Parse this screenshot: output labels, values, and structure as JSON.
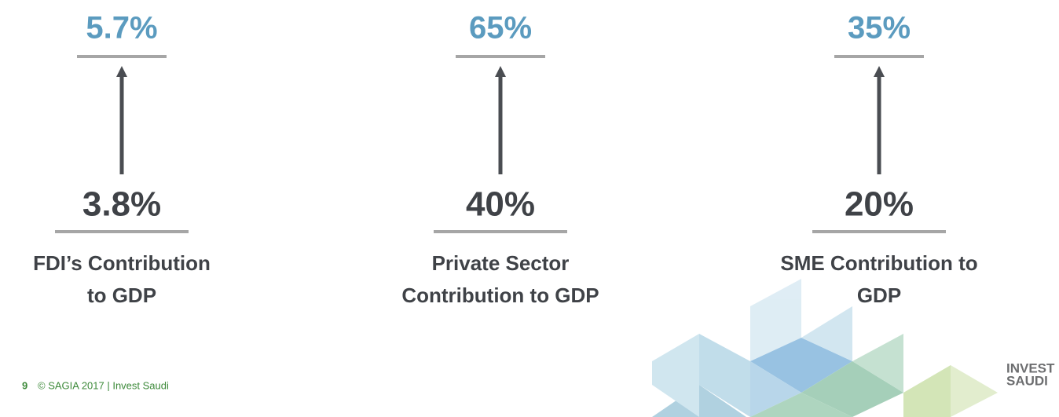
{
  "items": [
    {
      "target": "5.7%",
      "current": "3.8%",
      "label": [
        "FDI’s Contribution",
        "to GDP"
      ]
    },
    {
      "target": "65%",
      "current": "40%",
      "label": [
        "Private Sector",
        "Contribution to GDP"
      ]
    },
    {
      "target": "35%",
      "current": "20%",
      "label": [
        "SME Contribution to",
        "GDP"
      ]
    }
  ],
  "footer": {
    "page": "9",
    "text": "© SAGIA 2017 | Invest Saudi"
  },
  "logo": [
    "INVEST",
    "SAUDI"
  ]
}
